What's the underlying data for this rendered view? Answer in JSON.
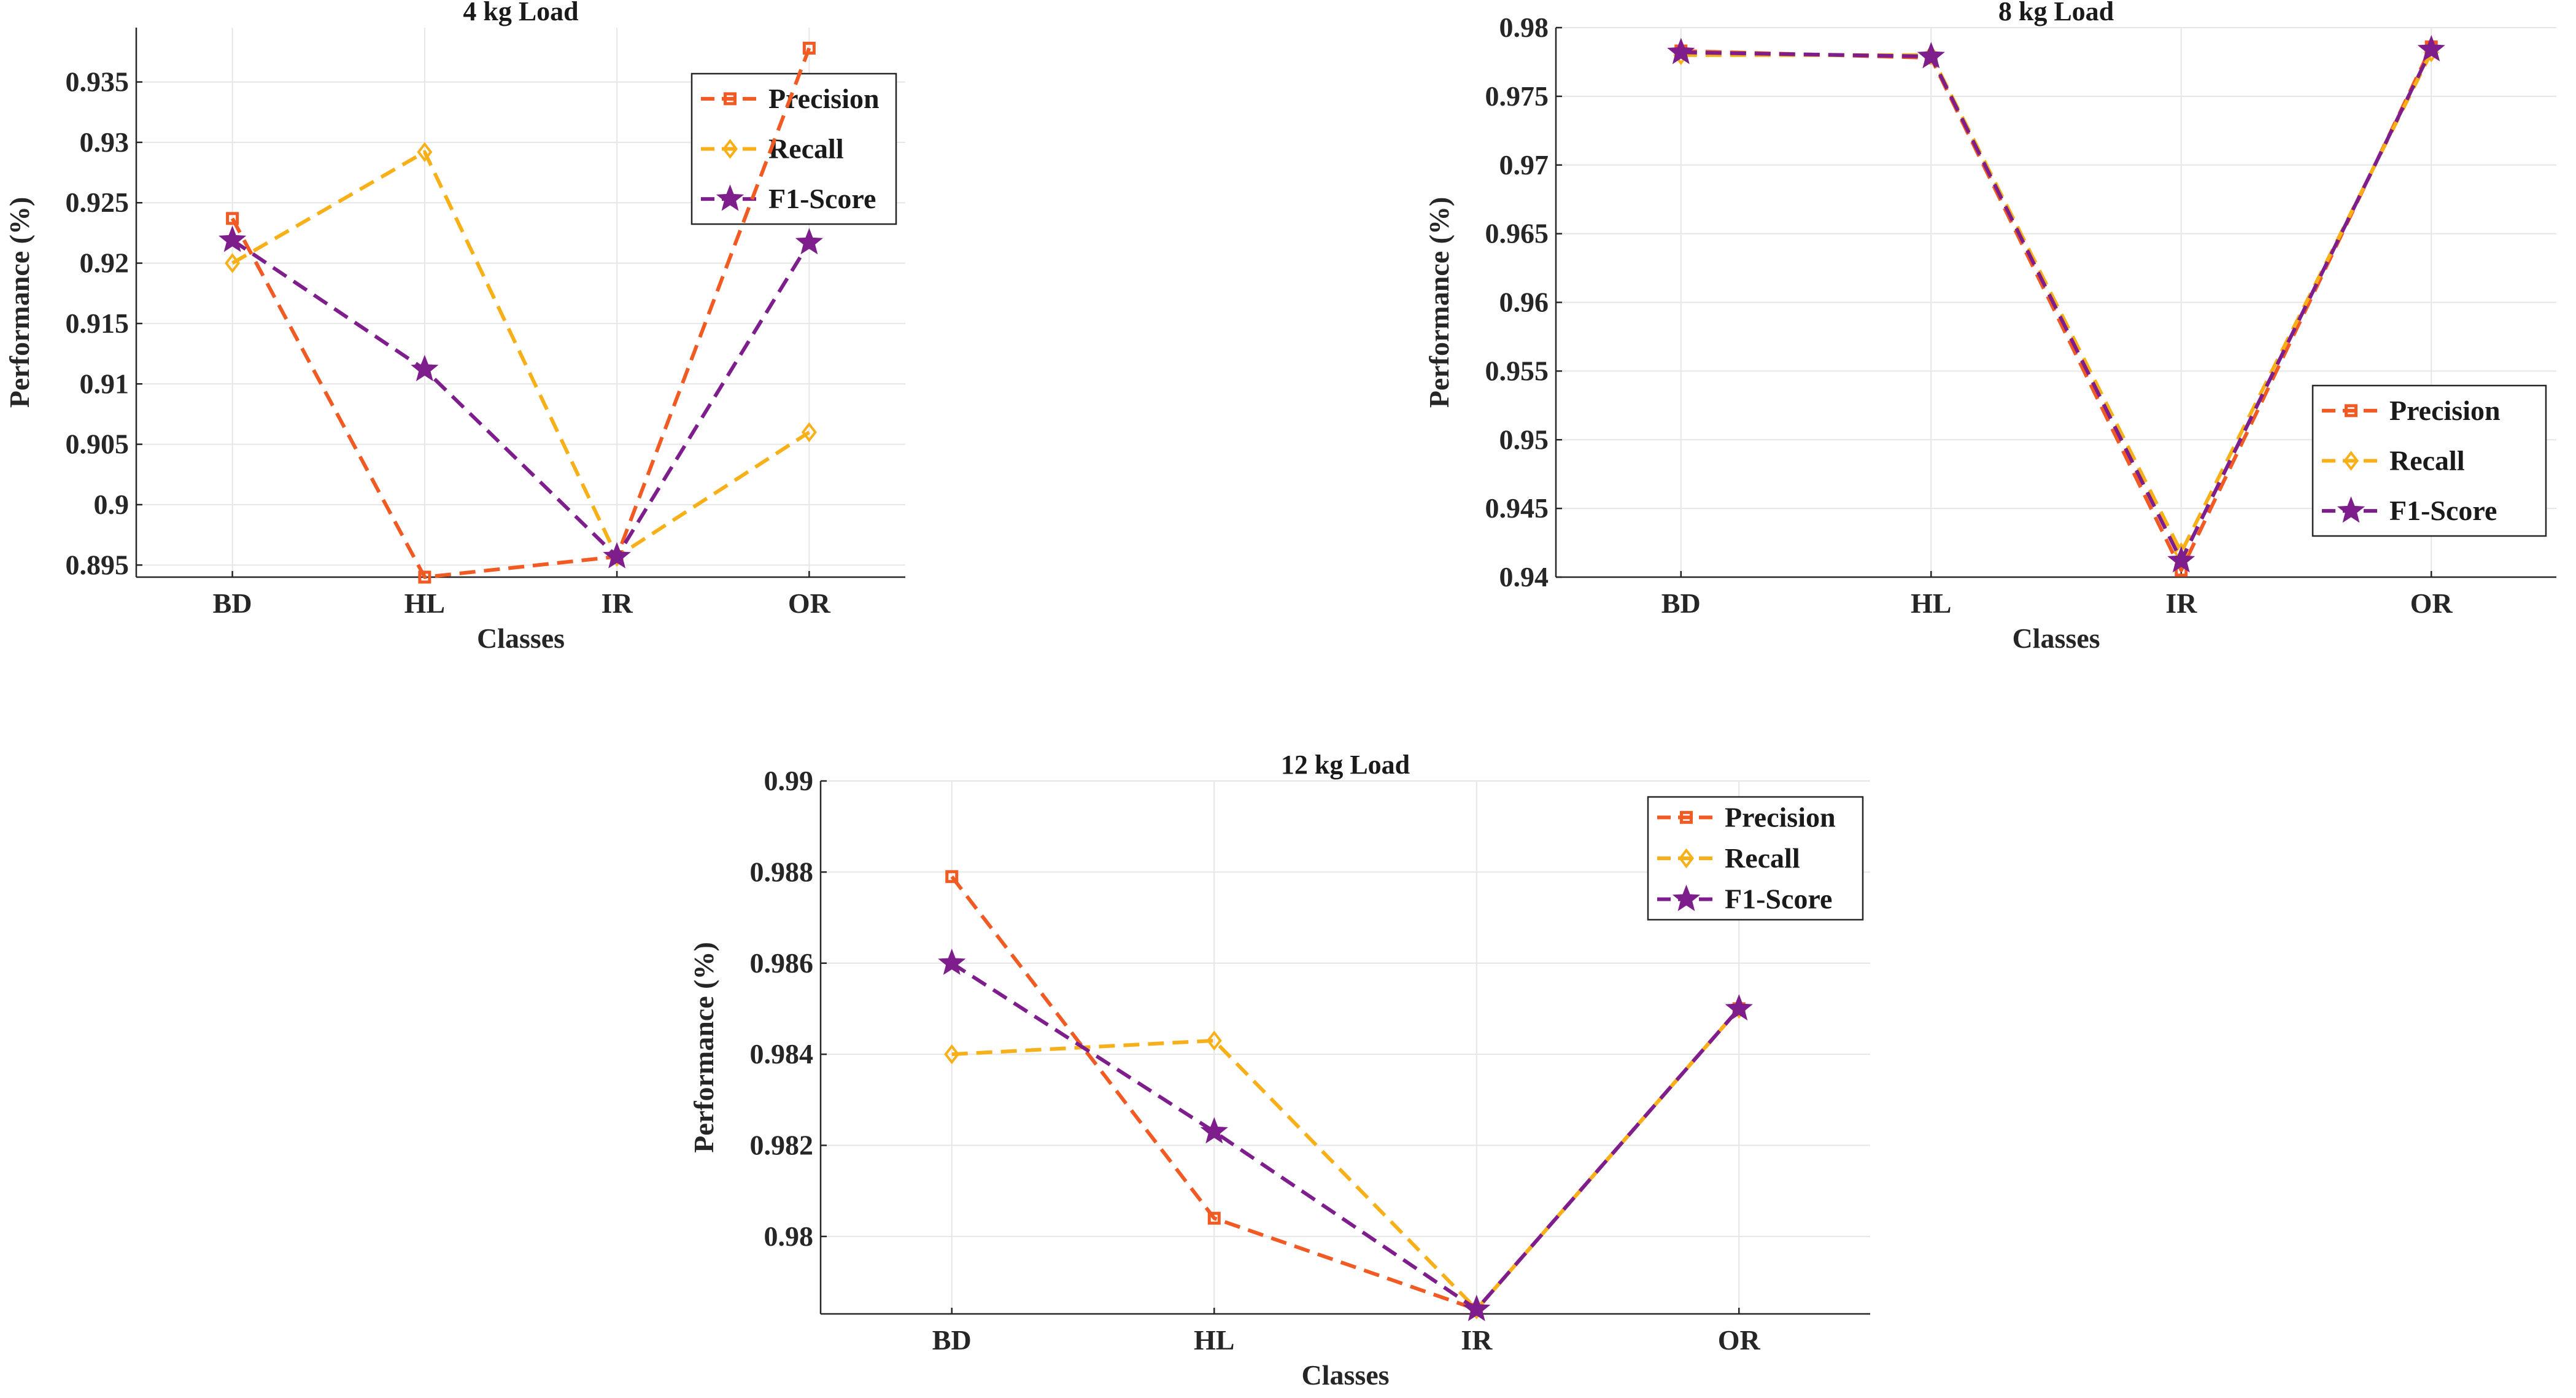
{
  "figure": {
    "background": "#ffffff",
    "colors": {
      "precision": "#f15a22",
      "recall": "#f7b017",
      "f1": "#7e1e8c"
    },
    "markers": {
      "precision": "square",
      "recall": "diamond",
      "f1": "star"
    }
  },
  "chart_data": [
    {
      "type": "line",
      "title": "4 kg Load",
      "xlabel": "Classes",
      "ylabel": "Performance (%)",
      "categories": [
        "BD",
        "HL",
        "IR",
        "OR"
      ],
      "ylim": [
        0.894,
        0.9395
      ],
      "yticks": [
        0.895,
        0.9,
        0.905,
        0.91,
        0.915,
        0.92,
        0.925,
        0.93,
        0.935
      ],
      "ytick_labels": [
        "0.895",
        "0.9",
        "0.905",
        "0.91",
        "0.915",
        "0.92",
        "0.925",
        "0.93",
        "0.935"
      ],
      "grid": true,
      "legend_position": "top-right",
      "series": [
        {
          "name": "Precision",
          "values": [
            0.9237,
            0.894,
            0.8957,
            0.9378
          ]
        },
        {
          "name": "Recall",
          "values": [
            0.92,
            0.9292,
            0.8957,
            0.906
          ]
        },
        {
          "name": "F1-Score",
          "values": [
            0.9219,
            0.9112,
            0.8957,
            0.9217
          ]
        }
      ]
    },
    {
      "type": "line",
      "title": "8 kg Load",
      "xlabel": "Classes",
      "ylabel": "Performance (%)",
      "categories": [
        "BD",
        "HL",
        "IR",
        "OR"
      ],
      "ylim": [
        0.94,
        0.98
      ],
      "yticks": [
        0.94,
        0.945,
        0.95,
        0.955,
        0.96,
        0.965,
        0.97,
        0.975,
        0.98
      ],
      "ytick_labels": [
        "0.94",
        "0.945",
        "0.95",
        "0.955",
        "0.96",
        "0.965",
        "0.97",
        "0.975",
        "0.98"
      ],
      "grid": true,
      "legend_position": "bottom-right",
      "series": [
        {
          "name": "Precision",
          "values": [
            0.9783,
            0.9778,
            0.9405,
            0.9786
          ]
        },
        {
          "name": "Recall",
          "values": [
            0.978,
            0.978,
            0.9418,
            0.9782
          ]
        },
        {
          "name": "F1-Score",
          "values": [
            0.9782,
            0.9779,
            0.9412,
            0.9784
          ]
        }
      ]
    },
    {
      "type": "line",
      "title": "12 kg Load",
      "xlabel": "Classes",
      "ylabel": "Performance (%)",
      "categories": [
        "BD",
        "HL",
        "IR",
        "OR"
      ],
      "ylim": [
        0.9783,
        0.99
      ],
      "yticks": [
        0.98,
        0.982,
        0.984,
        0.986,
        0.988,
        0.99
      ],
      "ytick_labels": [
        "0.98",
        "0.982",
        "0.984",
        "0.986",
        "0.988",
        "0.99"
      ],
      "grid": true,
      "legend_position": "top-right",
      "series": [
        {
          "name": "Precision",
          "values": [
            0.9879,
            0.9804,
            0.9784,
            0.985
          ]
        },
        {
          "name": "Recall",
          "values": [
            0.984,
            0.9843,
            0.9784,
            0.985
          ]
        },
        {
          "name": "F1-Score",
          "values": [
            0.986,
            0.9823,
            0.9784,
            0.985
          ]
        }
      ]
    }
  ]
}
